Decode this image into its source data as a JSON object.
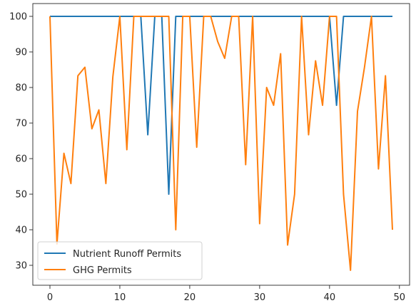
{
  "chart_data": {
    "type": "line",
    "title": "",
    "xlabel": "",
    "ylabel": "",
    "xlim": [
      -2.45,
      51.45
    ],
    "ylim": [
      24.4,
      103.6
    ],
    "grid": false,
    "legend_position": "bottom-left",
    "x_ticks": [
      0,
      10,
      20,
      30,
      40,
      50
    ],
    "y_ticks": [
      30,
      40,
      50,
      60,
      70,
      80,
      90,
      100
    ],
    "x": [
      0,
      1,
      2,
      3,
      4,
      5,
      6,
      7,
      8,
      9,
      10,
      11,
      12,
      13,
      14,
      15,
      16,
      17,
      18,
      19,
      20,
      21,
      22,
      23,
      24,
      25,
      26,
      27,
      28,
      29,
      30,
      31,
      32,
      33,
      34,
      35,
      36,
      37,
      38,
      39,
      40,
      41,
      42,
      43,
      44,
      45,
      46,
      47,
      48,
      49
    ],
    "series": [
      {
        "name": "Nutrient Runoff Permits",
        "color": "#1f77b4",
        "values": [
          100,
          100,
          100,
          100,
          100,
          100,
          100,
          100,
          100,
          100,
          100,
          100,
          100,
          100,
          66.7,
          100,
          100,
          50,
          100,
          100,
          100,
          100,
          100,
          100,
          100,
          100,
          100,
          100,
          100,
          100,
          100,
          100,
          100,
          100,
          100,
          100,
          100,
          100,
          100,
          100,
          100,
          75,
          100,
          100,
          100,
          100,
          100,
          100,
          100,
          100
        ]
      },
      {
        "name": "GHG Permits",
        "color": "#ff7f0e",
        "values": [
          100,
          36,
          61.5,
          53,
          83.3,
          85.7,
          68.4,
          73.7,
          53,
          83,
          100,
          62.5,
          100,
          100,
          100,
          100,
          100,
          100,
          40,
          100,
          100,
          63.2,
          100,
          100,
          92.9,
          88.2,
          100,
          100,
          58.3,
          100,
          41.7,
          80,
          75,
          89.5,
          35.7,
          50,
          100,
          66.7,
          87.5,
          75,
          100,
          100,
          50,
          28.6,
          73.3,
          85.7,
          100,
          57.1,
          83.3,
          40
        ]
      }
    ]
  }
}
